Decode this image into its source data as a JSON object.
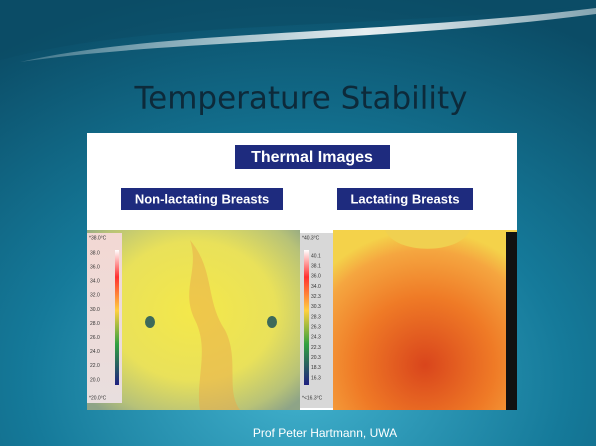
{
  "title": "Temperature Stability",
  "banner": "Thermal Images",
  "images": [
    {
      "label": "Non-lactating Breasts",
      "scale_top": "*38.0°C",
      "scale": [
        "38.0",
        "36.0",
        "34.0",
        "32.0",
        "30.0",
        "28.0",
        "26.0",
        "24.0",
        "22.0",
        "20.0"
      ],
      "scale_bottom": "*20.0°C"
    },
    {
      "label": "Lactating Breasts",
      "scale_top": "*40.3°C",
      "scale": [
        "40.1",
        "38.1",
        "36.0",
        "34.0",
        "32.3",
        "30.3",
        "28.3",
        "26.3",
        "24.3",
        "22.3",
        "20.3",
        "18.3",
        "16.3"
      ],
      "scale_bottom": "*<16.3°C"
    }
  ],
  "footer": "Prof Peter Hartmann, UWA"
}
